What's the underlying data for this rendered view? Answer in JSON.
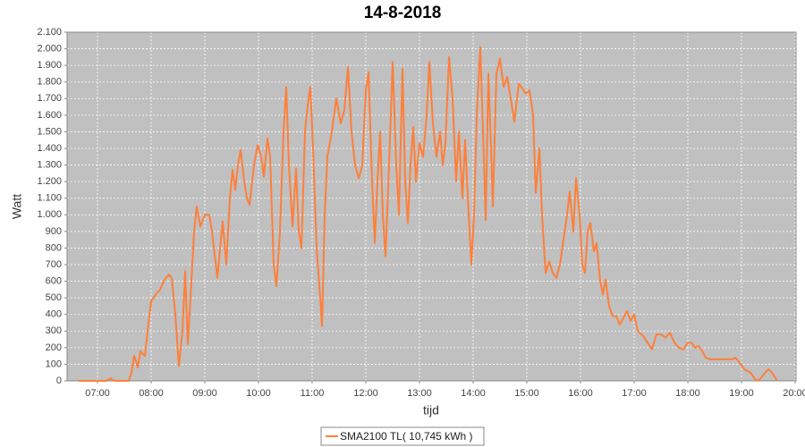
{
  "chart_data": {
    "type": "line",
    "title": "14-8-2018",
    "x_label": "tijd",
    "y_label": "Watt",
    "grid": true,
    "legend": "bottom",
    "xlim": [
      "06:26",
      "20:01"
    ],
    "xticks": [
      "07:00",
      "08:00",
      "09:00",
      "10:00",
      "11:00",
      "12:00",
      "13:00",
      "14:00",
      "15:00",
      "16:00",
      "17:00",
      "18:00",
      "19:00",
      "20:00"
    ],
    "ylim": [
      0,
      2100
    ],
    "yticks": [
      0,
      100,
      200,
      300,
      400,
      500,
      600,
      700,
      800,
      900,
      {
        "value": 1000,
        "label": "1.000"
      },
      {
        "value": 1100,
        "label": "1.100"
      },
      {
        "value": 1200,
        "label": "1.200"
      },
      {
        "value": 1300,
        "label": "1.300"
      },
      {
        "value": 1400,
        "label": "1.400"
      },
      {
        "value": 1500,
        "label": "1.500"
      },
      {
        "value": 1600,
        "label": "1.600"
      },
      {
        "value": 1700,
        "label": "1.700"
      },
      {
        "value": 1800,
        "label": "1.800"
      },
      {
        "value": 1900,
        "label": "1.900"
      },
      {
        "value": 2000,
        "label": "2.000"
      },
      {
        "value": 2100,
        "label": "2.100"
      }
    ],
    "x": [
      "06:39",
      "07:10",
      "07:15",
      "07:17",
      "07:20",
      "07:35",
      "07:38",
      "07:41",
      "07:43",
      "07:45",
      "07:48",
      "07:51",
      "07:53",
      "07:56",
      "08:00",
      "08:05",
      "08:10",
      "08:15",
      "08:20",
      "08:23",
      "08:27",
      "08:31",
      "08:35",
      "08:38",
      "08:41",
      "08:44",
      "08:48",
      "08:51",
      "08:55",
      "09:00",
      "09:05",
      "09:08",
      "09:14",
      "09:18",
      "09:20",
      "09:24",
      "09:28",
      "09:31",
      "09:34",
      "09:37",
      "09:40",
      "09:44",
      "09:47",
      "09:50",
      "09:55",
      "09:59",
      "10:03",
      "10:06",
      "10:10",
      "10:13",
      "10:17",
      "10:20",
      "10:24",
      "10:28",
      "10:31",
      "10:34",
      "10:38",
      "10:42",
      "10:45",
      "10:48",
      "10:52",
      "10:55",
      "10:58",
      "11:01",
      "11:05",
      "11:09",
      "11:11",
      "11:14",
      "11:17",
      "11:22",
      "11:27",
      "11:32",
      "11:36",
      "11:40",
      "11:44",
      "11:48",
      "11:52",
      "11:56",
      "12:00",
      "12:03",
      "12:07",
      "12:10",
      "12:13",
      "12:16",
      "12:19",
      "12:22",
      "12:26",
      "12:30",
      "12:34",
      "12:37",
      "12:41",
      "12:44",
      "12:47",
      "12:50",
      "12:53",
      "12:56",
      "13:00",
      "13:04",
      "13:08",
      "13:11",
      "13:15",
      "13:19",
      "13:23",
      "13:26",
      "13:29",
      "13:33",
      "13:37",
      "13:41",
      "13:44",
      "13:48",
      "13:51",
      "13:55",
      "13:58",
      "14:01",
      "14:04",
      "14:08",
      "14:11",
      "14:14",
      "14:17",
      "14:20",
      "14:22",
      "14:26",
      "14:30",
      "14:34",
      "14:38",
      "14:42",
      "14:46",
      "14:51",
      "14:55",
      "14:59",
      "15:03",
      "15:07",
      "15:10",
      "15:14",
      "15:17",
      "15:21",
      "15:25",
      "15:29",
      "15:33",
      "15:37",
      "15:41",
      "15:45",
      "15:48",
      "15:52",
      "15:55",
      "15:59",
      "16:02",
      "16:05",
      "16:08",
      "16:11",
      "16:15",
      "16:18",
      "16:22",
      "16:25",
      "16:28",
      "16:32",
      "16:36",
      "16:40",
      "16:44",
      "16:48",
      "16:52",
      "16:56",
      "17:00",
      "17:04",
      "17:10",
      "17:20",
      "17:25",
      "17:30",
      "17:35",
      "17:40",
      "17:45",
      "17:50",
      "17:55",
      "18:00",
      "18:04",
      "18:08",
      "18:12",
      "18:16",
      "18:20",
      "18:25",
      "18:50",
      "18:53",
      "18:58",
      "19:03",
      "19:10",
      "19:15",
      "19:19",
      "19:25",
      "19:30",
      "19:34",
      "19:40"
    ],
    "series": [
      {
        "name": "SMA2100 TL( 10,745 kWh )",
        "color": "#ff7f3a",
        "values": [
          0,
          0,
          15,
          5,
          0,
          0,
          50,
          150,
          120,
          80,
          180,
          160,
          150,
          300,
          480,
          520,
          550,
          610,
          640,
          620,
          400,
          90,
          300,
          660,
          220,
          500,
          900,
          1050,
          930,
          1000,
          1000,
          900,
          620,
          850,
          960,
          700,
          1100,
          1270,
          1150,
          1300,
          1390,
          1200,
          1100,
          1060,
          1300,
          1420,
          1350,
          1230,
          1460,
          1350,
          700,
          570,
          900,
          1500,
          1770,
          1300,
          930,
          1280,
          900,
          800,
          1500,
          1660,
          1770,
          1400,
          800,
          500,
          330,
          1000,
          1350,
          1500,
          1700,
          1550,
          1630,
          1890,
          1500,
          1300,
          1220,
          1300,
          1750,
          1860,
          1200,
          830,
          1200,
          1500,
          1000,
          750,
          1300,
          1920,
          1300,
          1000,
          1880,
          1200,
          950,
          1300,
          1530,
          1200,
          1430,
          1350,
          1600,
          1920,
          1550,
          1350,
          1500,
          1300,
          1430,
          1950,
          1700,
          1200,
          1500,
          1100,
          1450,
          1000,
          700,
          1000,
          1600,
          2010,
          1500,
          970,
          1850,
          1400,
          1050,
          1850,
          1940,
          1770,
          1830,
          1700,
          1560,
          1790,
          1760,
          1730,
          1750,
          1600,
          1130,
          1400,
          1000,
          650,
          720,
          650,
          620,
          700,
          850,
          1000,
          1140,
          900,
          1220,
          1000,
          700,
          650,
          900,
          950,
          780,
          830,
          600,
          520,
          610,
          450,
          390,
          390,
          340,
          380,
          420,
          360,
          400,
          300,
          270,
          190,
          280,
          280,
          260,
          290,
          230,
          200,
          190,
          230,
          230,
          200,
          210,
          180,
          140,
          130,
          130,
          140,
          110,
          70,
          50,
          10,
          0,
          40,
          70,
          50,
          0
        ]
      }
    ]
  }
}
